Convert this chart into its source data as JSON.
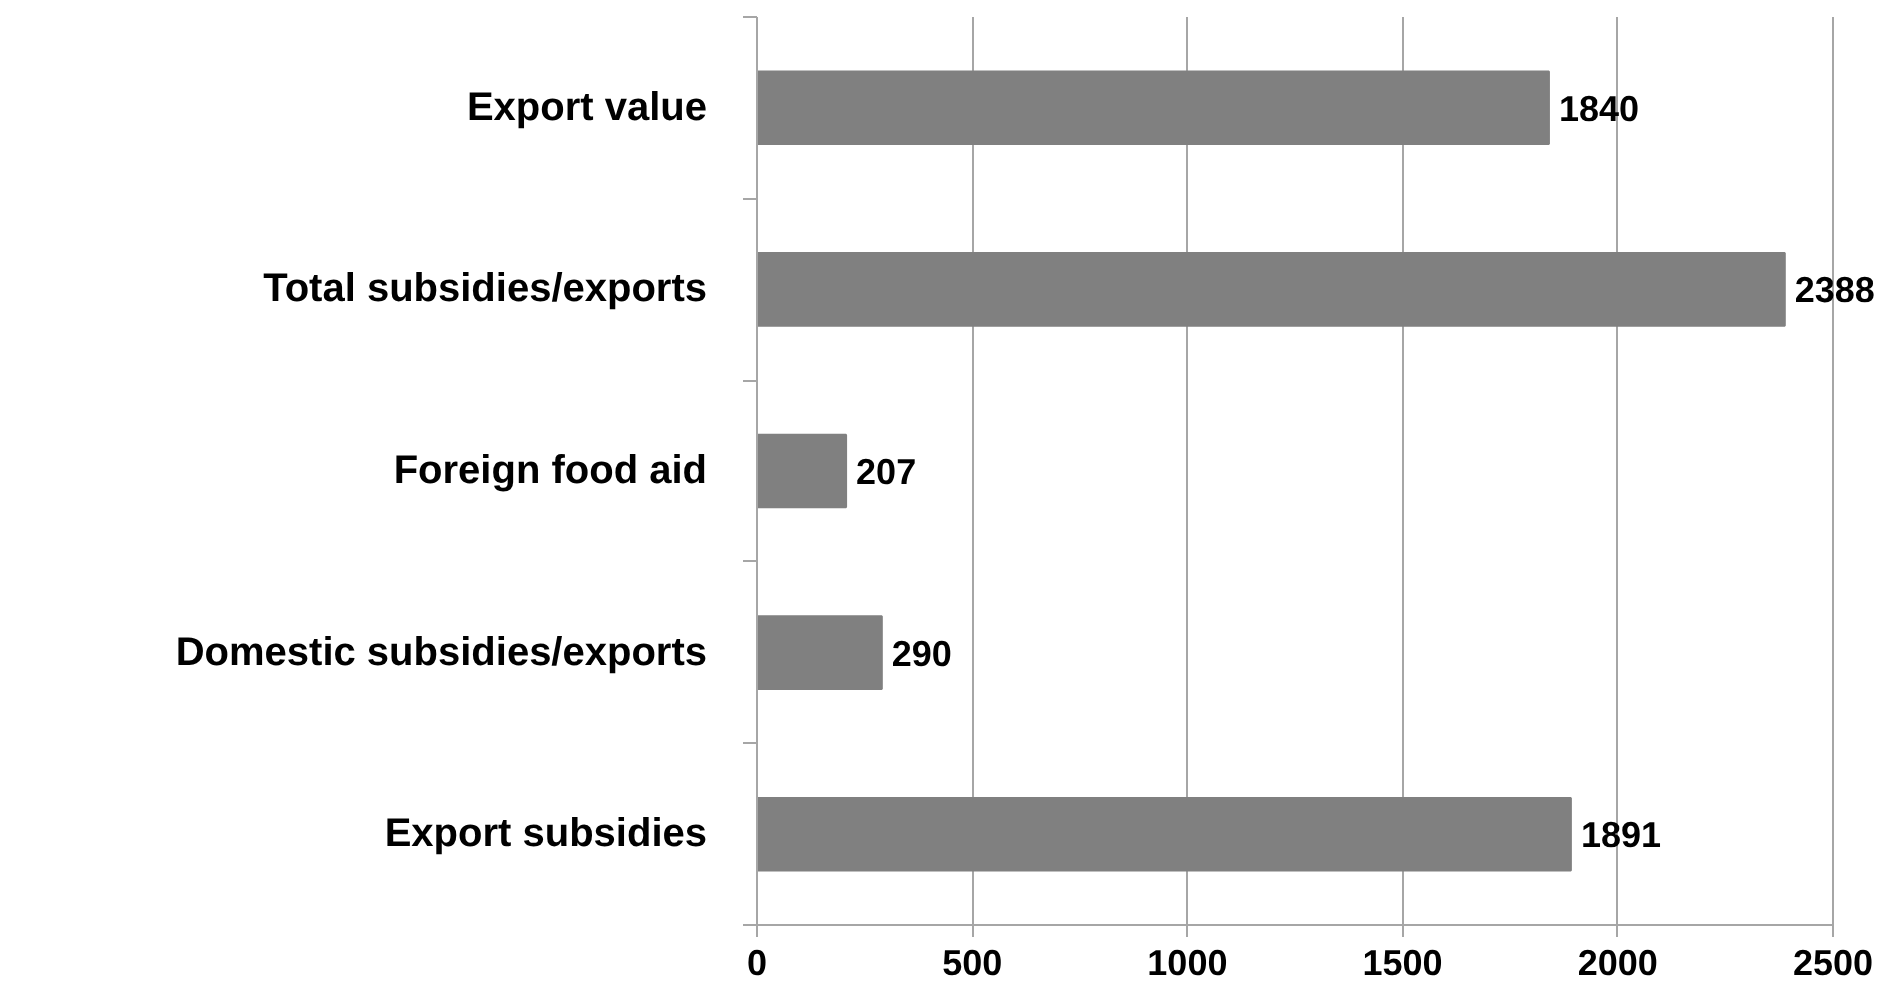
{
  "chart_data": {
    "type": "bar",
    "orientation": "horizontal",
    "categories": [
      "Export value",
      "Total subsidies/exports",
      "Foreign food aid",
      "Domestic subsidies/exports",
      "Export subsidies"
    ],
    "values": [
      1840,
      2388,
      207,
      290,
      1891
    ],
    "color": "#808080",
    "xlim": [
      0,
      2500
    ],
    "xticks": [
      0,
      500,
      1000,
      1500,
      2000,
      2500
    ],
    "grid": "x",
    "data_labels": true
  }
}
